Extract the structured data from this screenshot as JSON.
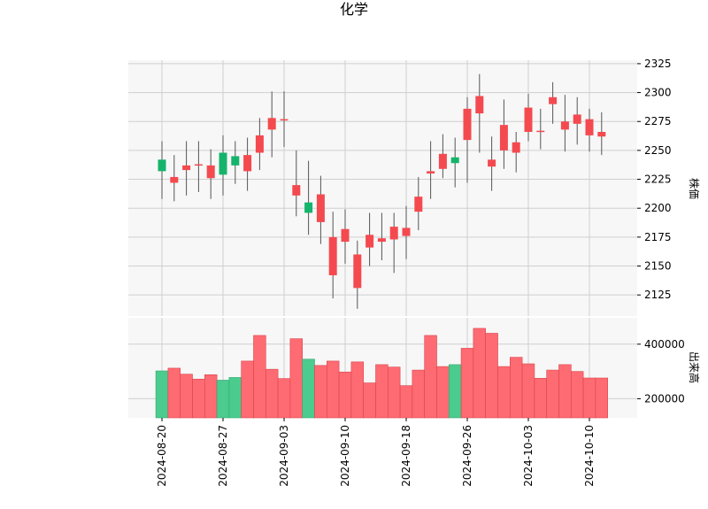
{
  "title": "化学",
  "colors": {
    "up": "#f44a4f",
    "down": "#15b46b",
    "vol_up": "#ff6b72",
    "vol_down": "#4ccb8e",
    "grid": "#cfcfcf",
    "panel_bg": "#f7f7f7"
  },
  "chart_data": [
    {
      "type": "candlestick",
      "title": "化学",
      "ylabel": "株価",
      "ylim": [
        2106,
        2328
      ],
      "yticks": [
        2125,
        2150,
        2175,
        2200,
        2225,
        2250,
        2275,
        2300,
        2325
      ],
      "xticks": [
        "2024-08-20",
        "2024-08-27",
        "2024-09-03",
        "2024-09-10",
        "2024-09-18",
        "2024-09-26",
        "2024-10-03",
        "2024-10-10"
      ],
      "dates": [
        "2024-08-20",
        "2024-08-21",
        "2024-08-22",
        "2024-08-23",
        "2024-08-26",
        "2024-08-27",
        "2024-08-28",
        "2024-08-29",
        "2024-08-30",
        "2024-09-02",
        "2024-09-03",
        "2024-09-04",
        "2024-09-05",
        "2024-09-06",
        "2024-09-09",
        "2024-09-10",
        "2024-09-11",
        "2024-09-12",
        "2024-09-13",
        "2024-09-17",
        "2024-09-18",
        "2024-09-19",
        "2024-09-20",
        "2024-09-24",
        "2024-09-25",
        "2024-09-26",
        "2024-09-27",
        "2024-09-30",
        "2024-10-01",
        "2024-10-02",
        "2024-10-03",
        "2024-10-04",
        "2024-10-07",
        "2024-10-08",
        "2024-10-09",
        "2024-10-10",
        "2024-10-11"
      ],
      "open": [
        2242,
        2222,
        2233,
        2237,
        2226,
        2248,
        2245,
        2232,
        2248,
        2268,
        2276,
        2211,
        2205,
        2188,
        2142,
        2171,
        2131,
        2166,
        2171,
        2173,
        2176,
        2197,
        2230,
        2234,
        2244,
        2259,
        2282,
        2236,
        2250,
        2248,
        2266,
        2266,
        2290,
        2268,
        2273,
        2263,
        2262
      ],
      "high": [
        2258,
        2246,
        2258,
        2258,
        2251,
        2263,
        2258,
        2261,
        2278,
        2301,
        2301,
        2250,
        2241,
        2228,
        2197,
        2199,
        2172,
        2196,
        2196,
        2196,
        2202,
        2227,
        2258,
        2264,
        2261,
        2296,
        2316,
        2262,
        2294,
        2266,
        2299,
        2286,
        2309,
        2298,
        2296,
        2286,
        2283
      ],
      "low": [
        2208,
        2206,
        2211,
        2214,
        2208,
        2211,
        2221,
        2215,
        2233,
        2244,
        2253,
        2193,
        2177,
        2169,
        2122,
        2152,
        2113,
        2150,
        2155,
        2144,
        2156,
        2181,
        2208,
        2226,
        2218,
        2222,
        2248,
        2215,
        2234,
        2231,
        2258,
        2251,
        2273,
        2249,
        2255,
        2249,
        2246
      ],
      "close": [
        2232,
        2227,
        2237,
        2238,
        2237,
        2229,
        2237,
        2246,
        2263,
        2278,
        2277,
        2220,
        2196,
        2212,
        2175,
        2182,
        2160,
        2177,
        2174,
        2184,
        2183,
        2210,
        2232,
        2247,
        2239,
        2286,
        2297,
        2242,
        2272,
        2257,
        2287,
        2267,
        2296,
        2275,
        2281,
        2277,
        2266
      ]
    },
    {
      "type": "bar",
      "ylabel": "出来高",
      "ylim": [
        130000,
        500000
      ],
      "yticks": [
        200000,
        400000
      ],
      "volume": [
        302000,
        312000,
        290000,
        272000,
        288000,
        268000,
        278000,
        338000,
        432000,
        308000,
        274000,
        420000,
        345000,
        322000,
        338000,
        298000,
        335000,
        258000,
        325000,
        316000,
        248000,
        305000,
        432000,
        318000,
        325000,
        385000,
        458000,
        440000,
        318000,
        352000,
        328000,
        275000,
        305000,
        325000,
        300000,
        276000,
        276000
      ]
    }
  ]
}
